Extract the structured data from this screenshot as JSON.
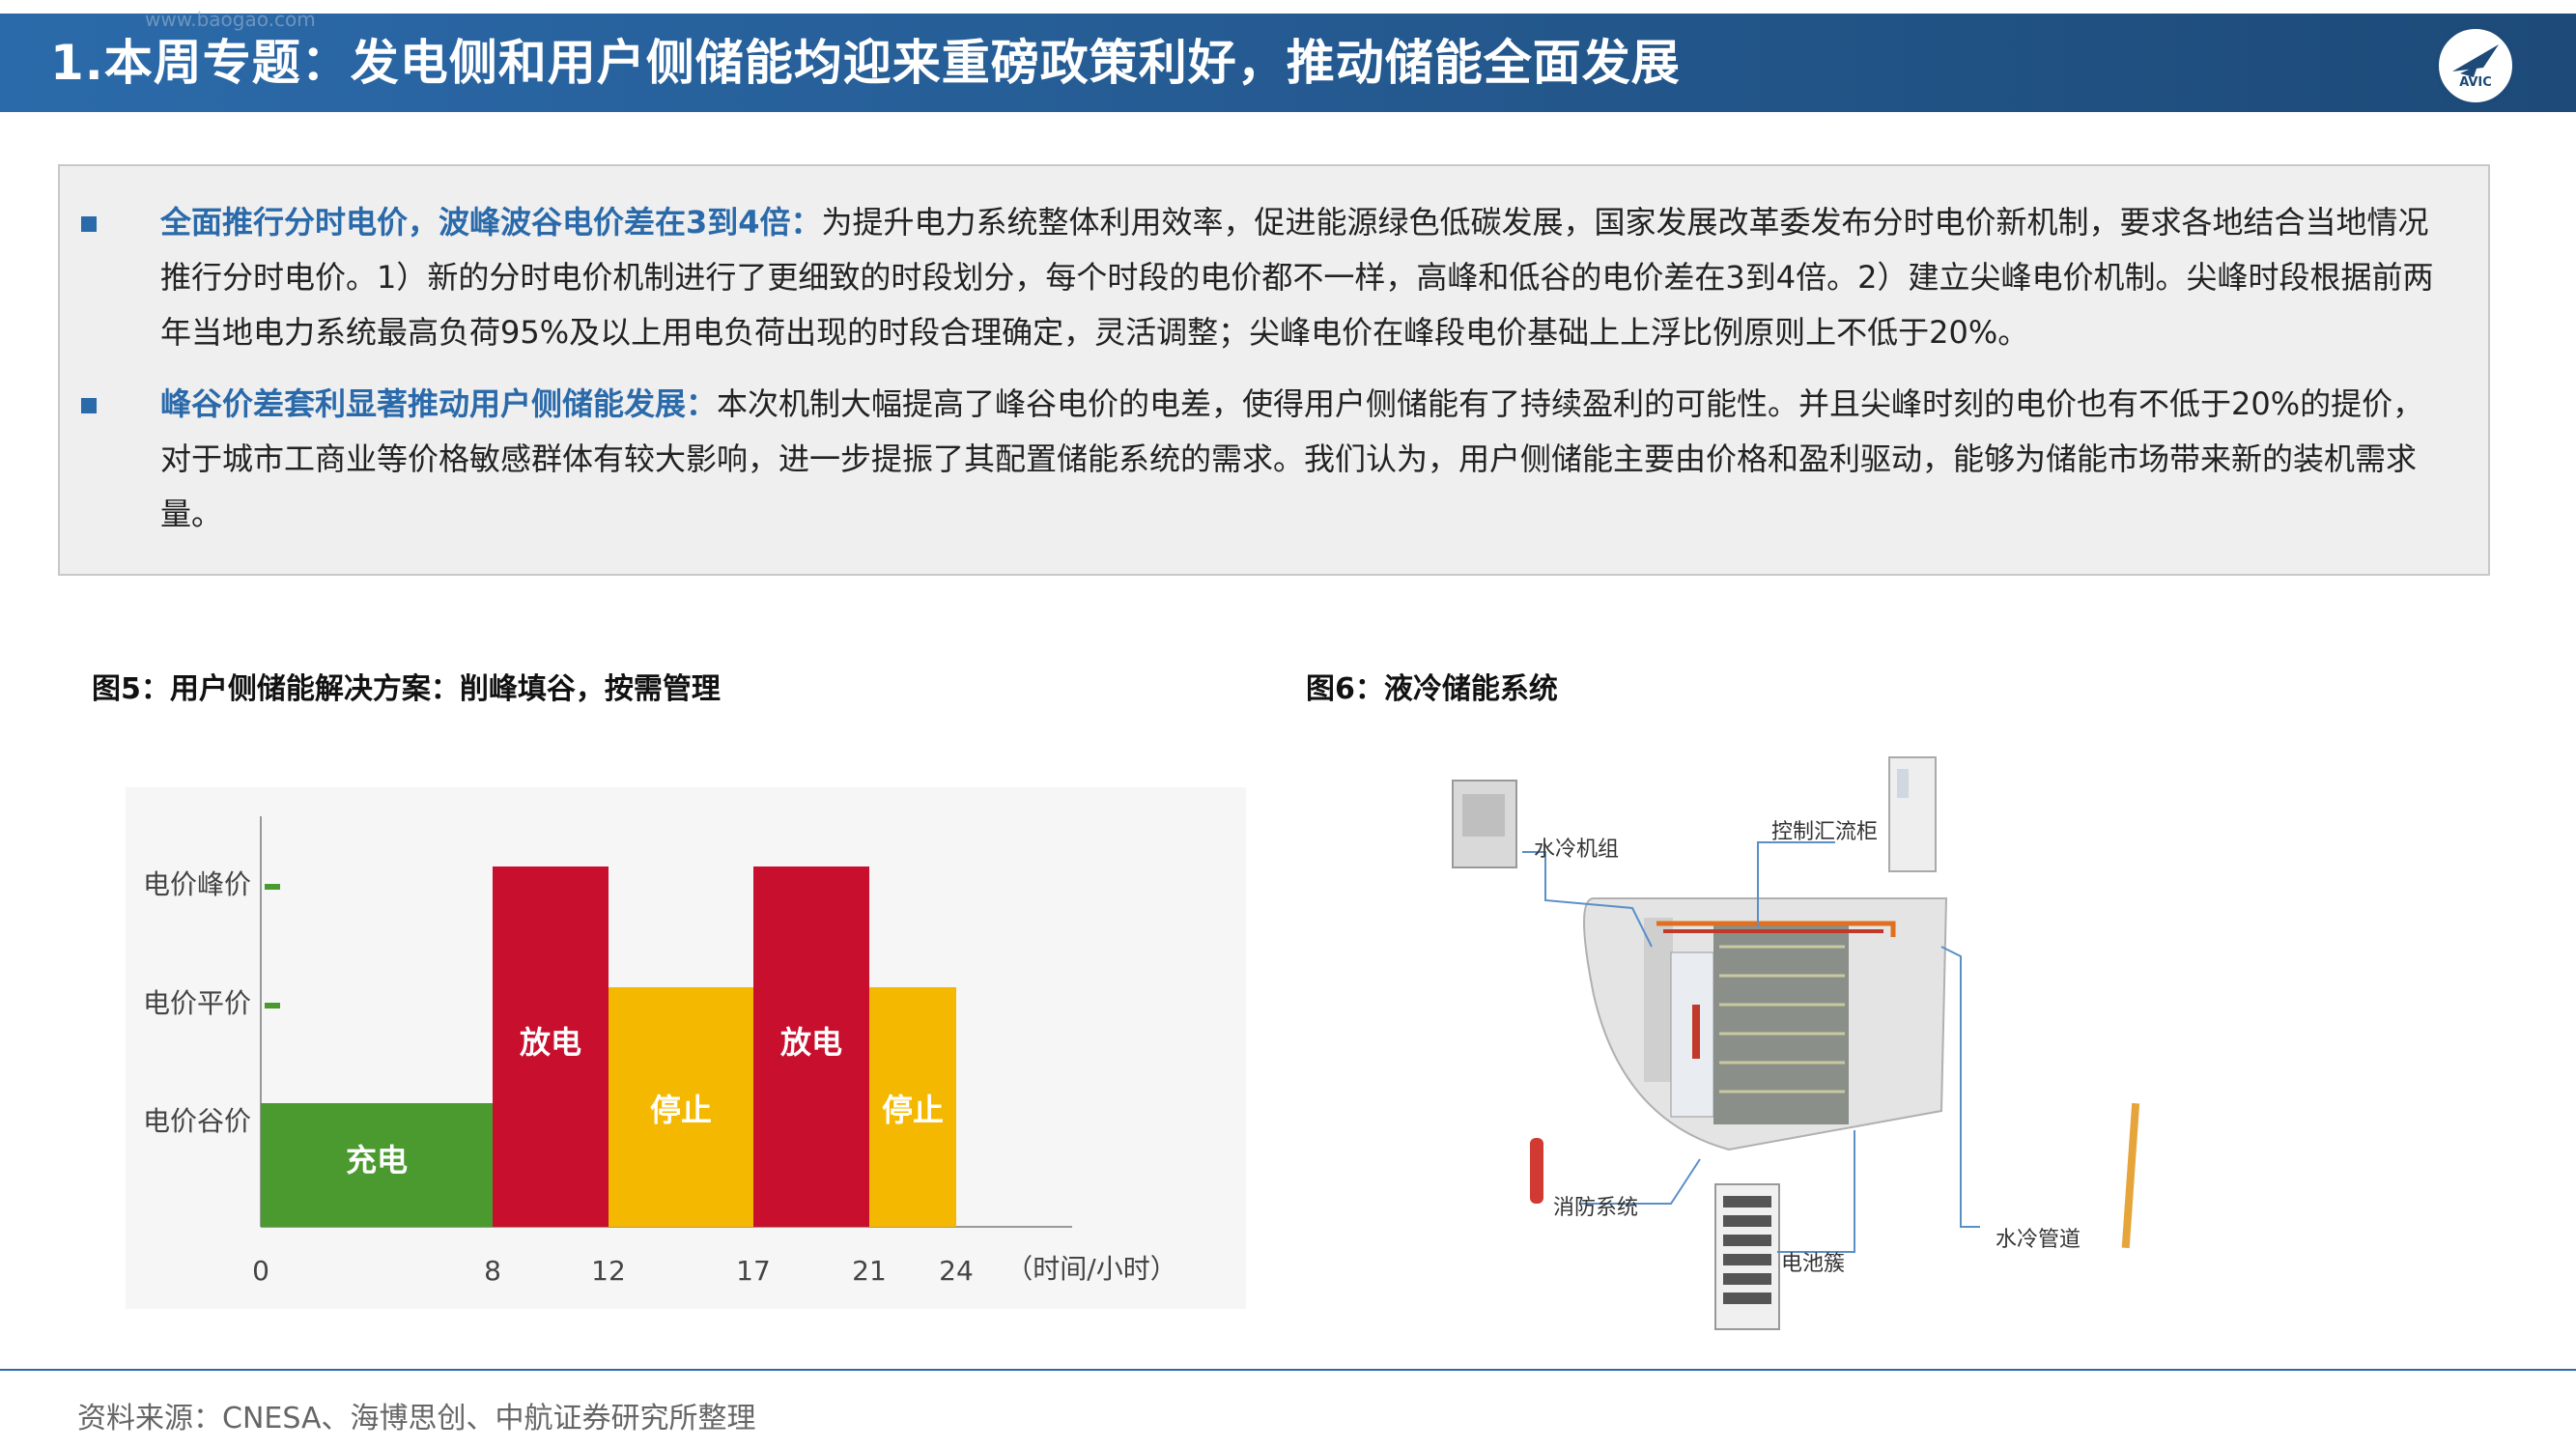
{
  "header": {
    "title": "1.本周专题：发电侧和用户侧储能均迎来重磅政策利好，推动储能全面发展",
    "watermark": "www.baogao.com",
    "logo_text": "AVIC"
  },
  "bullets": [
    {
      "heading": "全面推行分时电价，波峰波谷电价差在3到4倍：",
      "body": "为提升电力系统整体利用效率，促进能源绿色低碳发展，国家发展改革委发布分时电价新机制，要求各地结合当地情况推行分时电价。1）新的分时电价机制进行了更细致的时段划分，每个时段的电价都不一样，高峰和低谷的电价差在3到4倍。2）建立尖峰电价机制。尖峰时段根据前两年当地电力系统最高负荷95%及以上用电负荷出现的时段合理确定，灵活调整；尖峰电价在峰段电价基础上上浮比例原则上不低于20%。"
    },
    {
      "heading": "峰谷价差套利显著推动用户侧储能发展：",
      "body": "本次机制大幅提高了峰谷电价的电差，使得用户侧储能有了持续盈利的可能性。并且尖峰时刻的电价也有不低于20%的提价，对于城市工商业等价格敏感群体有较大影响，进一步提振了其配置储能系统的需求。我们认为，用户侧储能主要由价格和盈利驱动，能够为储能市场带来新的装机需求量。"
    }
  ],
  "figure5": {
    "caption": "图5：用户侧储能解决方案：削峰填谷，按需管理"
  },
  "figure6": {
    "caption": "图6：液冷储能系统",
    "labels": {
      "water_unit": "水冷机组",
      "control_cabinet": "控制汇流柜",
      "fire_system": "消防系统",
      "battery_cluster": "电池簇",
      "water_pipe": "水冷管道"
    }
  },
  "chart_data": {
    "type": "bar",
    "title": "",
    "xlabel": "（时间/小时）",
    "y_levels": [
      "电价谷价",
      "电价平价",
      "电价峰价"
    ],
    "x_ticks": [
      "0",
      "8",
      "12",
      "17",
      "21",
      "24"
    ],
    "segments": [
      {
        "start": 0,
        "end": 8,
        "level": 1,
        "label": "充电",
        "color": "#4a9a30"
      },
      {
        "start": 8,
        "end": 12,
        "level": 3,
        "label": "放电",
        "color": "#c8102e"
      },
      {
        "start": 12,
        "end": 17,
        "level": 2,
        "label": "停止",
        "color": "#f5b800"
      },
      {
        "start": 17,
        "end": 21,
        "level": 3,
        "label": "放电",
        "color": "#c8102e"
      },
      {
        "start": 21,
        "end": 24,
        "level": 2,
        "label": "停止",
        "color": "#f5b800"
      }
    ]
  },
  "footer": {
    "source": "资料来源：CNESA、海博思创、中航证券研究所整理"
  }
}
